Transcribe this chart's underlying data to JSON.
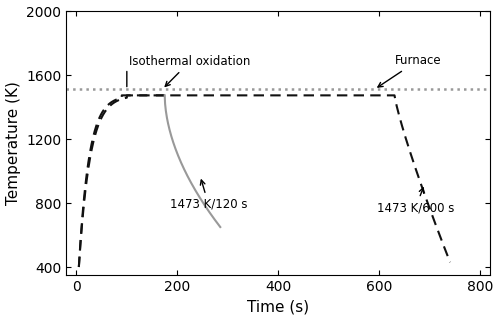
{
  "title": "",
  "xlabel": "Time (s)",
  "ylabel": "Temperature (K)",
  "xlim": [
    -20,
    820
  ],
  "ylim": [
    350,
    2000
  ],
  "xticks": [
    0,
    200,
    400,
    600,
    800
  ],
  "yticks": [
    400,
    800,
    1200,
    1600,
    2000
  ],
  "furnace_temp": 1510,
  "isothermal_temp": 1473,
  "furnace_color": "#999999",
  "curve_color": "#111111",
  "gray_color": "#999999",
  "figsize": [
    5.0,
    3.2
  ],
  "dpi": 100
}
